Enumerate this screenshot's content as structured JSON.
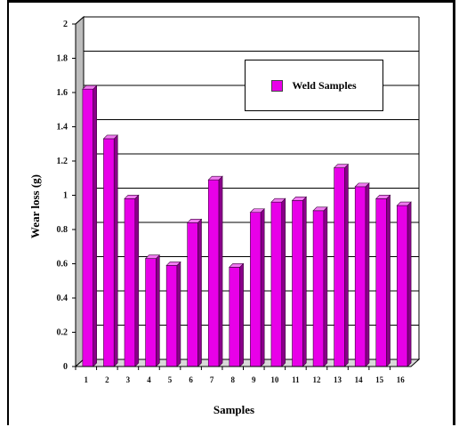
{
  "chart_data": {
    "type": "bar",
    "categories": [
      "1",
      "2",
      "3",
      "4",
      "5",
      "6",
      "7",
      "8",
      "9",
      "10",
      "11",
      "12",
      "13",
      "14",
      "15",
      "16"
    ],
    "series": [
      {
        "name": "Weld Samples",
        "values": [
          1.62,
          1.33,
          0.98,
          0.63,
          0.59,
          0.84,
          1.09,
          0.58,
          0.9,
          0.96,
          0.97,
          0.91,
          1.16,
          1.05,
          0.98,
          0.94
        ]
      }
    ],
    "title": "",
    "xlabel": "Samples",
    "ylabel": "Wear loss (g)",
    "ylim": [
      0,
      2
    ],
    "yticks": [
      "0",
      "0.2",
      "0.4",
      "0.6",
      "0.8",
      "1",
      "1.2",
      "1.4",
      "1.6",
      "1.8",
      "2"
    ],
    "grid": true,
    "legend": "top-right",
    "style": "3d-bar",
    "colors": {
      "bar_front": "#e800e8",
      "bar_side": "#8a008a",
      "bar_top": "#f07af0",
      "grid": "#000000"
    }
  }
}
